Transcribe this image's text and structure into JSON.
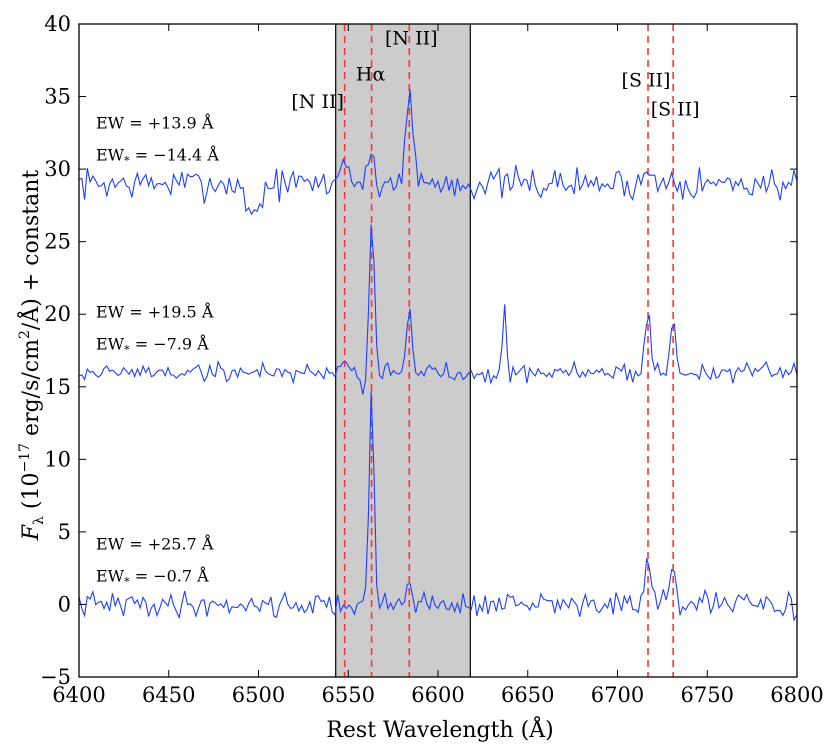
{
  "chart_data": {
    "type": "line",
    "title": "",
    "xlabel": "Rest Wavelength (Å)",
    "ylabel_parts": {
      "main": "F",
      "sub": "λ",
      "unit_open": " (10",
      "exp": "−17",
      "unit_mid": " erg/s/cm",
      "exp2": "2",
      "unit_close": "/Å) + constant"
    },
    "xlim": [
      6400,
      6800
    ],
    "ylim": [
      -5,
      40
    ],
    "xticks": [
      6400,
      6450,
      6500,
      6550,
      6600,
      6650,
      6700,
      6750,
      6800
    ],
    "yticks": [
      -5,
      0,
      5,
      10,
      15,
      20,
      25,
      30,
      35,
      40
    ],
    "shaded_region": {
      "x0": 6543,
      "x1": 6618,
      "color": "#cccccc"
    },
    "line_color": "#1f3fff",
    "marker_color": "#ff3333",
    "emission_lines": [
      {
        "name": "[N II]",
        "wavelength": 6548
      },
      {
        "name": "Hα",
        "wavelength": 6563
      },
      {
        "name": "[N II]",
        "wavelength": 6584
      },
      {
        "name": "[S II]",
        "wavelength": 6717
      },
      {
        "name": "[S II]",
        "wavelength": 6731
      }
    ],
    "series": [
      {
        "name": "top",
        "baseline": 29.0,
        "noise": 0.9,
        "seed": 7,
        "dip": {
          "center": 6497,
          "depth": 2.0,
          "width": 4
        },
        "peaks": [
          {
            "x": 6548,
            "amp": 2.0,
            "sigma": 2.0
          },
          {
            "x": 6563,
            "amp": 2.3,
            "sigma": 1.4
          },
          {
            "x": 6584,
            "amp": 6.0,
            "sigma": 2.2
          },
          {
            "x": 6717,
            "amp": 1.0,
            "sigma": 1.8
          },
          {
            "x": 6731,
            "amp": 0.9,
            "sigma": 1.8
          }
        ],
        "ew": "EW = +13.9 Å",
        "ew_star": "−14.4 Å"
      },
      {
        "name": "middle",
        "baseline": 16.0,
        "noise": 0.55,
        "seed": 19,
        "dip": {
          "center": 6560,
          "depth": 1.6,
          "width": 2
        },
        "peaks": [
          {
            "x": 6548,
            "amp": 1.2,
            "sigma": 1.6
          },
          {
            "x": 6563,
            "amp": 10.5,
            "sigma": 1.6
          },
          {
            "x": 6584,
            "amp": 4.2,
            "sigma": 1.5
          },
          {
            "x": 6637,
            "amp": 4.7,
            "sigma": 0.9
          },
          {
            "x": 6717,
            "amp": 4.4,
            "sigma": 1.5
          },
          {
            "x": 6731,
            "amp": 3.2,
            "sigma": 1.5
          }
        ],
        "ew": "EW = +19.5 Å",
        "ew_star": "−7.9 Å"
      },
      {
        "name": "bottom",
        "baseline": 0.0,
        "noise": 0.7,
        "seed": 41,
        "dip": {
          "center": 6700,
          "depth": 0.0,
          "width": 1
        },
        "peaks": [
          {
            "x": 6563,
            "amp": 14.8,
            "sigma": 1.3
          },
          {
            "x": 6584,
            "amp": 2.4,
            "sigma": 1.4
          },
          {
            "x": 6717,
            "amp": 3.1,
            "sigma": 1.6
          },
          {
            "x": 6731,
            "amp": 2.4,
            "sigma": 1.6
          }
        ],
        "ew": "EW = +25.7 Å",
        "ew_star": "−0.7 Å"
      }
    ]
  }
}
